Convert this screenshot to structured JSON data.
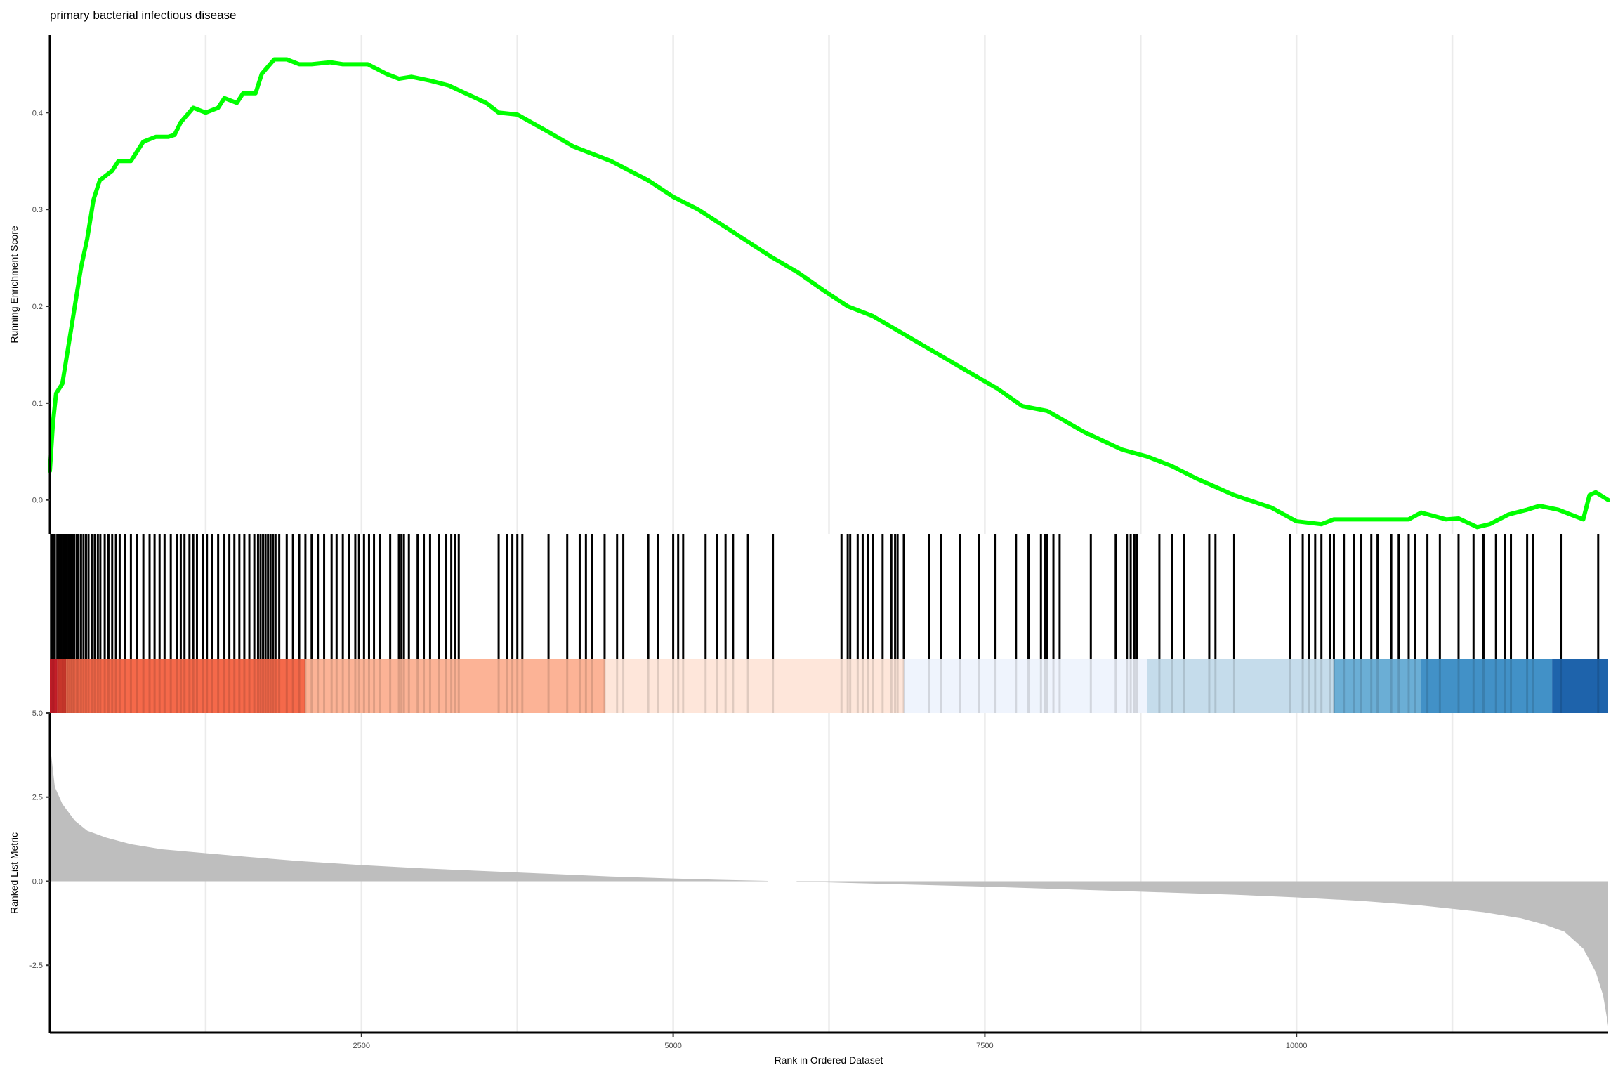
{
  "chart_data": {
    "type": "line",
    "title": "primary bacterial infectious disease",
    "xlabel": "Rank in Ordered Dataset",
    "ylabel_top": "Running Enrichment Score",
    "ylabel_bottom": "Ranked List Metric",
    "xlim": [
      0,
      12500
    ],
    "x_ticks": [
      {
        "value": 2500,
        "label": "2500"
      },
      {
        "value": 5000,
        "label": "5000"
      },
      {
        "value": 7500,
        "label": "7500"
      },
      {
        "value": 10000,
        "label": "10000"
      }
    ],
    "x_minor_grid": [
      1250,
      3750,
      6250,
      8750,
      11250
    ],
    "es_ylim": [
      -0.035,
      0.48
    ],
    "es_ticks": [
      {
        "value": 0.0,
        "label": "0.0"
      },
      {
        "value": 0.1,
        "label": "0.1"
      },
      {
        "value": 0.2,
        "label": "0.2"
      },
      {
        "value": 0.3,
        "label": "0.3"
      },
      {
        "value": 0.4,
        "label": "0.4"
      }
    ],
    "metric_ylim": [
      -4.5,
      5.0
    ],
    "metric_ticks": [
      {
        "value": 5.0,
        "label": "5.0"
      },
      {
        "value": 2.5,
        "label": "2.5"
      },
      {
        "value": 0.0,
        "label": "0.0"
      },
      {
        "value": -2.5,
        "label": "-2.5"
      }
    ],
    "running_es": {
      "name": "Running Enrichment Score",
      "color": "#00FF00",
      "points": [
        [
          0,
          0.03
        ],
        [
          25,
          0.08
        ],
        [
          50,
          0.11
        ],
        [
          100,
          0.12
        ],
        [
          150,
          0.16
        ],
        [
          200,
          0.2
        ],
        [
          250,
          0.24
        ],
        [
          300,
          0.27
        ],
        [
          350,
          0.31
        ],
        [
          400,
          0.33
        ],
        [
          500,
          0.34
        ],
        [
          550,
          0.35
        ],
        [
          650,
          0.35
        ],
        [
          750,
          0.37
        ],
        [
          850,
          0.375
        ],
        [
          950,
          0.375
        ],
        [
          1000,
          0.377
        ],
        [
          1050,
          0.39
        ],
        [
          1150,
          0.405
        ],
        [
          1250,
          0.4
        ],
        [
          1350,
          0.405
        ],
        [
          1400,
          0.415
        ],
        [
          1500,
          0.41
        ],
        [
          1550,
          0.42
        ],
        [
          1650,
          0.42
        ],
        [
          1700,
          0.44
        ],
        [
          1800,
          0.455
        ],
        [
          1900,
          0.455
        ],
        [
          2000,
          0.45
        ],
        [
          2100,
          0.45
        ],
        [
          2250,
          0.452
        ],
        [
          2350,
          0.45
        ],
        [
          2450,
          0.45
        ],
        [
          2550,
          0.45
        ],
        [
          2700,
          0.44
        ],
        [
          2800,
          0.435
        ],
        [
          2900,
          0.437
        ],
        [
          3050,
          0.433
        ],
        [
          3200,
          0.428
        ],
        [
          3500,
          0.41
        ],
        [
          3600,
          0.4
        ],
        [
          3750,
          0.398
        ],
        [
          4000,
          0.38
        ],
        [
          4200,
          0.365
        ],
        [
          4500,
          0.35
        ],
        [
          4800,
          0.33
        ],
        [
          5000,
          0.313
        ],
        [
          5200,
          0.3
        ],
        [
          5500,
          0.275
        ],
        [
          5800,
          0.25
        ],
        [
          6000,
          0.235
        ],
        [
          6200,
          0.217
        ],
        [
          6400,
          0.2
        ],
        [
          6600,
          0.19
        ],
        [
          6800,
          0.175
        ],
        [
          7000,
          0.16
        ],
        [
          7200,
          0.145
        ],
        [
          7400,
          0.13
        ],
        [
          7600,
          0.115
        ],
        [
          7800,
          0.097
        ],
        [
          8000,
          0.092
        ],
        [
          8300,
          0.07
        ],
        [
          8600,
          0.052
        ],
        [
          8800,
          0.045
        ],
        [
          9000,
          0.035
        ],
        [
          9200,
          0.022
        ],
        [
          9500,
          0.005
        ],
        [
          9800,
          -0.008
        ],
        [
          10000,
          -0.022
        ],
        [
          10200,
          -0.025
        ],
        [
          10300,
          -0.02
        ],
        [
          10500,
          -0.02
        ],
        [
          10700,
          -0.02
        ],
        [
          10900,
          -0.02
        ],
        [
          11000,
          -0.013
        ],
        [
          11200,
          -0.02
        ],
        [
          11300,
          -0.019
        ],
        [
          11450,
          -0.028
        ],
        [
          11550,
          -0.025
        ],
        [
          11700,
          -0.015
        ],
        [
          11850,
          -0.01
        ],
        [
          11950,
          -0.006
        ],
        [
          12100,
          -0.01
        ],
        [
          12300,
          -0.02
        ],
        [
          12350,
          0.005
        ],
        [
          12400,
          0.008
        ],
        [
          12500,
          0.0
        ]
      ]
    },
    "gene_hits": [
      10,
      25,
      40,
      60,
      75,
      90,
      105,
      120,
      135,
      150,
      165,
      180,
      195,
      215,
      230,
      250,
      270,
      290,
      310,
      335,
      360,
      385,
      405,
      440,
      470,
      500,
      530,
      560,
      600,
      650,
      700,
      750,
      800,
      840,
      880,
      920,
      970,
      1020,
      1050,
      1080,
      1120,
      1150,
      1180,
      1230,
      1260,
      1300,
      1350,
      1400,
      1440,
      1480,
      1520,
      1560,
      1600,
      1640,
      1670,
      1690,
      1710,
      1730,
      1750,
      1770,
      1790,
      1810,
      1840,
      1900,
      1950,
      2000,
      2050,
      2100,
      2150,
      2200,
      2260,
      2300,
      2350,
      2400,
      2450,
      2480,
      2520,
      2560,
      2600,
      2650,
      2730,
      2800,
      2820,
      2840,
      2880,
      2950,
      3000,
      3050,
      3120,
      3180,
      3220,
      3250,
      3280,
      3600,
      3670,
      3710,
      3750,
      3790,
      4000,
      4150,
      4250,
      4300,
      4350,
      4450,
      4550,
      4600,
      4800,
      4880,
      5000,
      5040,
      5080,
      5260,
      5350,
      5420,
      5480,
      5600,
      5800,
      6350,
      6400,
      6420,
      6480,
      6520,
      6560,
      6600,
      6680,
      6750,
      6780,
      6800,
      6850,
      7050,
      7150,
      7300,
      7450,
      7580,
      7750,
      7850,
      7950,
      7980,
      8000,
      8050,
      8100,
      8350,
      8550,
      8640,
      8670,
      8700,
      8720,
      8900,
      9000,
      9100,
      9300,
      9350,
      9500,
      9950,
      10050,
      10100,
      10150,
      10200,
      10270,
      10300,
      10380,
      10460,
      10520,
      10600,
      10650,
      10760,
      10820,
      10900,
      10950,
      11050,
      11150,
      11300,
      11420,
      11500,
      11600,
      11670,
      11720,
      11850,
      11900,
      12120,
      12420
    ],
    "metric_area": {
      "color": "#BEBEBE",
      "points": [
        [
          0,
          4.1
        ],
        [
          40,
          2.8
        ],
        [
          100,
          2.3
        ],
        [
          200,
          1.8
        ],
        [
          300,
          1.5
        ],
        [
          450,
          1.3
        ],
        [
          650,
          1.1
        ],
        [
          900,
          0.95
        ],
        [
          1200,
          0.85
        ],
        [
          1600,
          0.72
        ],
        [
          2000,
          0.6
        ],
        [
          2500,
          0.48
        ],
        [
          3000,
          0.38
        ],
        [
          3500,
          0.3
        ],
        [
          4000,
          0.22
        ],
        [
          4500,
          0.14
        ],
        [
          5000,
          0.08
        ],
        [
          5500,
          0.03
        ],
        [
          5760,
          0.01
        ]
      ],
      "points_negative": [
        [
          5990,
          -0.01
        ],
        [
          6500,
          -0.06
        ],
        [
          7000,
          -0.11
        ],
        [
          7500,
          -0.16
        ],
        [
          8000,
          -0.22
        ],
        [
          8500,
          -0.28
        ],
        [
          9000,
          -0.34
        ],
        [
          9500,
          -0.4
        ],
        [
          10000,
          -0.48
        ],
        [
          10500,
          -0.58
        ],
        [
          11000,
          -0.72
        ],
        [
          11500,
          -0.92
        ],
        [
          11800,
          -1.1
        ],
        [
          12000,
          -1.3
        ],
        [
          12150,
          -1.5
        ],
        [
          12300,
          -2.0
        ],
        [
          12400,
          -2.7
        ],
        [
          12460,
          -3.4
        ],
        [
          12500,
          -4.3
        ]
      ]
    },
    "color_bands": [
      {
        "x0": 0,
        "x1": 60,
        "color": "#D4202C"
      },
      {
        "x0": 60,
        "x1": 130,
        "color": "#E33E30"
      },
      {
        "x0": 130,
        "x1": 2050,
        "color": "#F5694A"
      },
      {
        "x0": 2050,
        "x1": 4450,
        "color": "#FCB396"
      },
      {
        "x0": 4450,
        "x1": 6850,
        "color": "#FEE6DA"
      },
      {
        "x0": 6850,
        "x1": 8800,
        "color": "#EFF4FD"
      },
      {
        "x0": 8800,
        "x1": 10300,
        "color": "#C5DCEB"
      },
      {
        "x0": 10300,
        "x1": 11000,
        "color": "#6BAED5"
      },
      {
        "x0": 11000,
        "x1": 12050,
        "color": "#4291C7"
      },
      {
        "x0": 12050,
        "x1": 12500,
        "color": "#1E63AB"
      }
    ]
  }
}
